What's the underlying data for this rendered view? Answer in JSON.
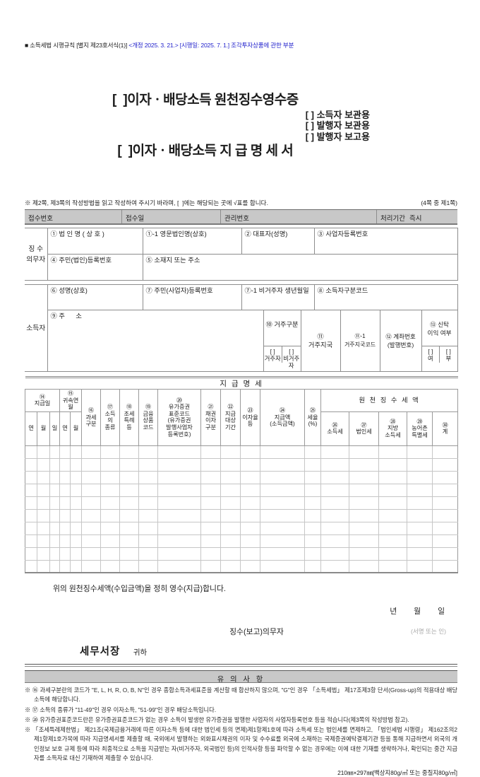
{
  "colors": {
    "accent_blue": "#2222cc",
    "bar_gray": "#c8c8c8",
    "sign_note_gray": "#a8a8a8"
  },
  "header": {
    "form_ref": "■ 소득세법 시행규칙 [별지 제23호서식(1)]",
    "revision": "<개정 2025. 3. 21.> [시행일: 2025. 7. 1.] 조각투자상품에 관한 부분",
    "title_line1": "[  ]이자ㆍ배당소득 원천징수영수증",
    "title_line2": "[  ]이자ㆍ배당소득 지 급 명 세 서",
    "copy_options": [
      "[ ] 소득자 보관용",
      "[ ] 발행자 보관용",
      "[ ] 발행자 보고용"
    ],
    "instruction": "※ 제2쪽, 제3쪽의 작성방법을 읽고 작성하여 주시기 바라며, [  ]에는 해당되는 곳에 √표를 합니다.",
    "page_note": "(4쪽 중 제1쪽)"
  },
  "receipt_bar": {
    "receipt_no": "접수번호",
    "receipt_date": "접수일",
    "mgmt_no": "관리번호",
    "period_label": "처리기간",
    "period_value": "즉시"
  },
  "withholder": {
    "side_label": "징 수\n의무자",
    "f1": "① 법 인 명 ( 상 호 )",
    "f1_1": "①-1 영문법인명(상호)",
    "f2": "② 대표자(성명)",
    "f3": "③ 사업자등록번호",
    "f4": "④ 주민(법인)등록번호",
    "f5": "⑤ 소재지 또는 주소"
  },
  "income_earner": {
    "side_label": "소득자",
    "f6": "⑥ 성명(상호)",
    "f7": "⑦ 주민(사업자)등록번호",
    "f7_1": "⑦-1 비거주자 생년월일",
    "f8": "⑧ 소득자구분코드",
    "f9": "⑨ 주      소",
    "f10": "⑩ 거주구분",
    "f10_resident": "[ ]\n거주자",
    "f10_nonresident": "[ ]\n비거주자",
    "f11": "⑪\n거주지국",
    "f11_1": "⑪-1\n거주지국코드",
    "f12": "⑫ 계좌번호\n(발행번호)",
    "f13": "⑬ 신탁\n이익 여부",
    "f13_yes": "[ ]\n여",
    "f13_no": "[ ]\n부"
  },
  "statement": {
    "title": "지 급 명 세",
    "h14": "⑭\n지급일",
    "h15": "⑮\n귀속연월",
    "date_subs": [
      "연",
      "월",
      "일",
      "연",
      "월"
    ],
    "h16": "⑯\n과세\n구분",
    "h17": "⑰\n소득\n의\n종류",
    "h18": "⑱\n조세\n특례\n등",
    "h19": "⑲\n금융\n상품\n코드",
    "h20": "⑳\n유가증권\n표준코드\n(유가증권\n발행사업자\n등록번호)",
    "h21": "㉑\n채권\n이자\n구분",
    "h22": "㉒\n지급\n대상\n기간",
    "h23": "㉓\n이자율\n등",
    "h24": "㉔\n지급액\n(소득금액)",
    "h25": "㉕\n세율\n(%)",
    "group_withholding": "원 천 징 수 세 액",
    "h26": "㉖\n소득세",
    "h27": "㉗\n법인세",
    "h28": "㉘\n지방\n소득세",
    "h29": "㉙\n농어촌\n특별세",
    "h30": "㉚\n계",
    "empty_rows": 10
  },
  "footer": {
    "declaration": "위의 원천징수세액(수입금액)을 정히 영수(지급)합니다.",
    "date_line": "년        월        일",
    "signer_label": "징수(보고)의무자",
    "sign_note": "(서명 또는 인)",
    "recipient": "세무서장",
    "recipient_suffix": "귀하"
  },
  "notices": {
    "title": "유 의 사 항",
    "items": [
      "※ ⑯ 과세구분란의 코드가 \"E, L, H, R, O, B, N\"인 경우 종합소득과세표준을 계산할 때 합산하지 않으며, \"G\"인 경우 「소득세법」 제17조제3항 단서(Gross-up)의 적용대상 배당소득에 해당합니다.",
      "※ ⑰ 소득의 종류가 \"11-49\"인 경우 이자소득, \"51-99\"인 경우 배당소득입니다.",
      "※ ⑳ 유가증권표준코드란은 유가증권표준코드가 없는 경우 소득이 발생한 유가증권을 발행한 사업자의 사업자등록번호 등을 적습니다(제3쪽의 작성방법 참고).",
      "※ 「조세특례제한법」 제21조(국제금융거래에 따른 이자소득 등에 대한 법인세 등의 면제)제1항제1호에 따라 소득세 또는 법인세를 면제하고, 「법인세법 시행령」 제162조의2제1항제1호가목에 따라 지급명세서를 제출할 때, 국외에서 발행하는 외화표시채권의 이자 및 수수료를 외국에 소재하는 국제증권예탁결제기관 등을 통해 지급하면서 외국의 개인정보 보호 규제 등에 따라 최종적으로 소득을 지급받는 자(비거주자, 외국법인 등)의 인적사항 등을 파악할 수 없는 경우에는 이에 대한 기재를 생략하거나, 확인되는 중간 지급자를 소득자로 대신 기재하여 제출할 수 있습니다."
    ]
  },
  "paper_spec": "210㎜×297㎜[백상지80g/㎡ 또는 중질지80g/㎡]"
}
